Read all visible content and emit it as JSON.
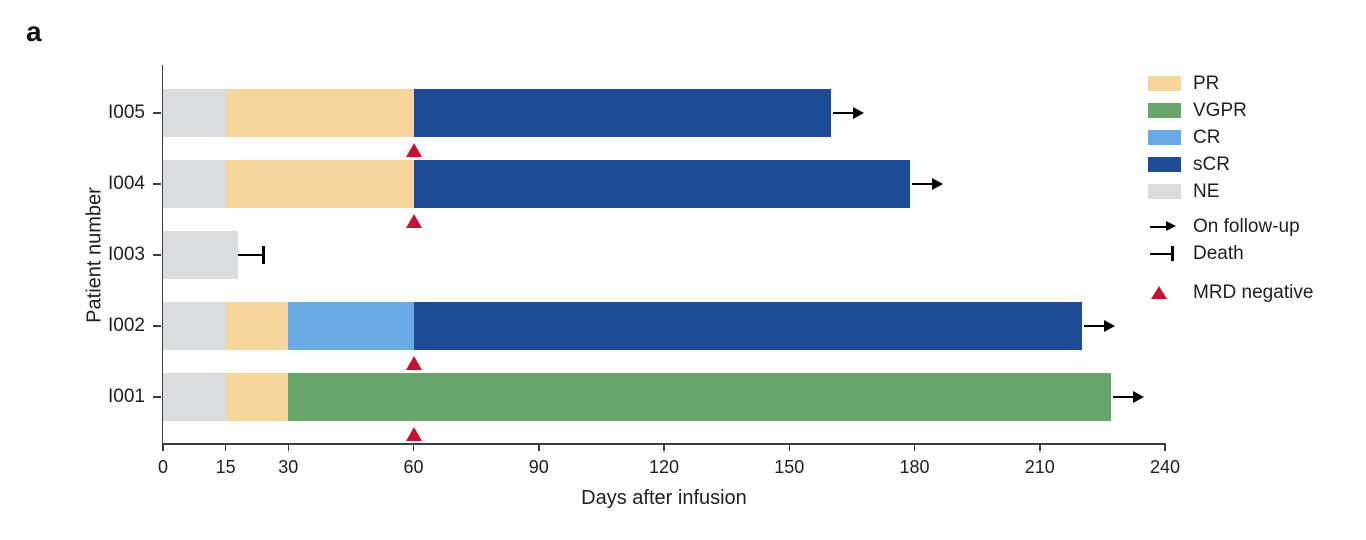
{
  "panel_label": "a",
  "colors": {
    "PR": "#F5D69B",
    "VGPR": "#68A56D",
    "CR": "#69A9E4",
    "sCR": "#1E4C94",
    "NE": "#DBDCDD",
    "mrd_triangle": "#C41230",
    "axis": "#3d3d3d",
    "marker": "#000000"
  },
  "chart_data": {
    "type": "bar",
    "subtype": "swimmer-plot",
    "orientation": "horizontal",
    "title": "",
    "xlabel": "Days after infusion",
    "ylabel": "Patient number",
    "xlim": [
      0,
      240
    ],
    "xticks": [
      0,
      15,
      30,
      60,
      90,
      120,
      150,
      180,
      210,
      240
    ],
    "grid": false,
    "legend_position": "top-right",
    "categories": [
      "I005",
      "I004",
      "I003",
      "I002",
      "I001"
    ],
    "patients": [
      {
        "id": "I005",
        "segments": [
          {
            "response": "NE",
            "start": 0,
            "end": 15
          },
          {
            "response": "PR",
            "start": 15,
            "end": 60
          },
          {
            "response": "sCR",
            "start": 60,
            "end": 160
          }
        ],
        "end_marker": "on-follow-up",
        "mrd_negative_day": 60
      },
      {
        "id": "I004",
        "segments": [
          {
            "response": "NE",
            "start": 0,
            "end": 15
          },
          {
            "response": "PR",
            "start": 15,
            "end": 60
          },
          {
            "response": "sCR",
            "start": 60,
            "end": 179
          }
        ],
        "end_marker": "on-follow-up",
        "mrd_negative_day": 60
      },
      {
        "id": "I003",
        "segments": [
          {
            "response": "NE",
            "start": 0,
            "end": 18
          }
        ],
        "end_marker": "death",
        "death_day": 24,
        "mrd_negative_day": null
      },
      {
        "id": "I002",
        "segments": [
          {
            "response": "NE",
            "start": 0,
            "end": 15
          },
          {
            "response": "PR",
            "start": 15,
            "end": 30
          },
          {
            "response": "CR",
            "start": 30,
            "end": 60
          },
          {
            "response": "sCR",
            "start": 60,
            "end": 220
          }
        ],
        "end_marker": "on-follow-up",
        "mrd_negative_day": 60
      },
      {
        "id": "I001",
        "segments": [
          {
            "response": "NE",
            "start": 0,
            "end": 15
          },
          {
            "response": "PR",
            "start": 15,
            "end": 30
          },
          {
            "response": "VGPR",
            "start": 30,
            "end": 227
          }
        ],
        "end_marker": "on-follow-up",
        "mrd_negative_day": 60
      }
    ],
    "legend": [
      {
        "label": "PR",
        "glyph": "swatch",
        "color_key": "PR"
      },
      {
        "label": "VGPR",
        "glyph": "swatch",
        "color_key": "VGPR"
      },
      {
        "label": "CR",
        "glyph": "swatch",
        "color_key": "CR"
      },
      {
        "label": "sCR",
        "glyph": "swatch",
        "color_key": "sCR"
      },
      {
        "label": "NE",
        "glyph": "swatch",
        "color_key": "NE"
      },
      {
        "label": "On follow-up",
        "glyph": "arrow"
      },
      {
        "label": "Death",
        "glyph": "death"
      },
      {
        "label": "MRD negative",
        "glyph": "triangle"
      }
    ]
  }
}
